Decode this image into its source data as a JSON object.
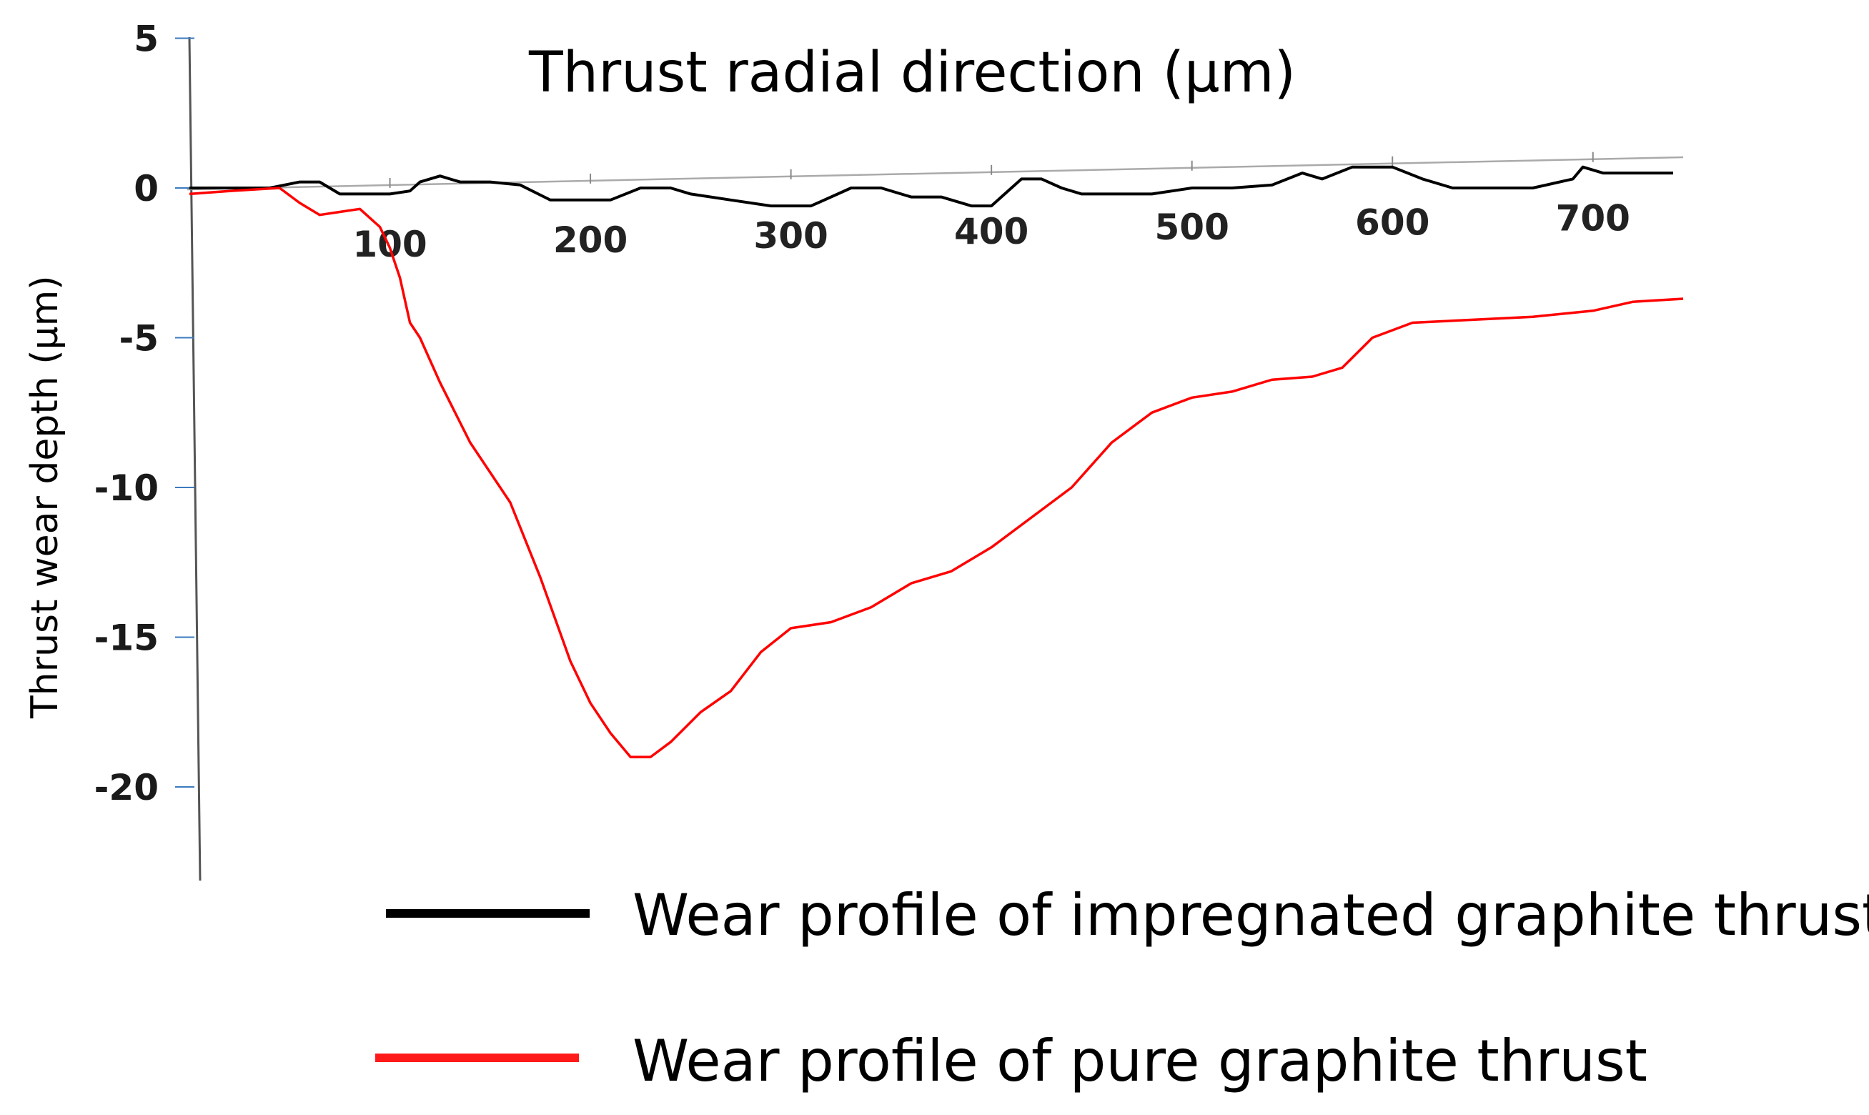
{
  "chart_data": {
    "type": "line",
    "xlabel": "Thrust radial direction (μm)",
    "ylabel": "Thrust wear depth (μm)",
    "xlim": [
      0,
      745
    ],
    "ylim": [
      -23,
      5
    ],
    "x_ticks": [
      100,
      200,
      300,
      400,
      500,
      600,
      700
    ],
    "x_tick_labels": [
      "100",
      "200",
      "300",
      "400",
      "500",
      "600",
      "700"
    ],
    "y_ticks": [
      5,
      0,
      -5,
      -10,
      -15,
      -20
    ],
    "y_tick_labels": [
      "5",
      "0",
      "-5",
      "-10",
      "-15",
      "-20"
    ],
    "grid": false,
    "legend_position": "bottom-right",
    "series": [
      {
        "name": "Wear profile of impregnated graphite thrust",
        "color": "#000000",
        "x": [
          0,
          20,
          40,
          55,
          65,
          75,
          90,
          100,
          110,
          115,
          125,
          135,
          150,
          165,
          180,
          200,
          210,
          225,
          240,
          250,
          270,
          290,
          310,
          330,
          345,
          360,
          375,
          390,
          400,
          415,
          425,
          435,
          445,
          460,
          480,
          500,
          520,
          540,
          555,
          565,
          580,
          600,
          615,
          630,
          650,
          670,
          690,
          695,
          705,
          720,
          740
        ],
        "y": [
          0,
          0,
          0,
          0.2,
          0.2,
          -0.2,
          -0.2,
          -0.2,
          -0.1,
          0.2,
          0.4,
          0.2,
          0.2,
          0.1,
          -0.4,
          -0.4,
          -0.4,
          0,
          0,
          -0.2,
          -0.4,
          -0.6,
          -0.6,
          0,
          0,
          -0.3,
          -0.3,
          -0.6,
          -0.6,
          0.3,
          0.3,
          0,
          -0.2,
          -0.2,
          -0.2,
          0,
          0,
          0.1,
          0.5,
          0.3,
          0.7,
          0.7,
          0.3,
          0,
          0,
          0,
          0.3,
          0.7,
          0.5,
          0.5,
          0.5
        ]
      },
      {
        "name": "Wear profile of pure graphite thrust",
        "color": "#ff0000",
        "x": [
          0,
          20,
          45,
          55,
          65,
          75,
          85,
          95,
          100,
          105,
          110,
          115,
          125,
          140,
          160,
          175,
          190,
          200,
          210,
          220,
          230,
          240,
          255,
          270,
          285,
          300,
          320,
          340,
          360,
          380,
          400,
          420,
          440,
          460,
          480,
          500,
          520,
          540,
          560,
          575,
          590,
          610,
          640,
          670,
          700,
          720,
          745
        ],
        "y": [
          -0.2,
          -0.1,
          0,
          -0.5,
          -0.9,
          -0.8,
          -0.7,
          -1.3,
          -2,
          -3,
          -4.5,
          -5,
          -6.5,
          -8.5,
          -10.5,
          -13,
          -15.8,
          -17.2,
          -18.2,
          -19,
          -19,
          -18.5,
          -17.5,
          -16.8,
          -15.5,
          -14.7,
          -14.5,
          -14,
          -13.2,
          -12.8,
          -12,
          -11,
          -10,
          -8.5,
          -7.5,
          -7,
          -6.8,
          -6.4,
          -6.3,
          -6,
          -5,
          -4.5,
          -4.4,
          -4.3,
          -4.1,
          -3.8,
          -3.7
        ]
      }
    ]
  }
}
